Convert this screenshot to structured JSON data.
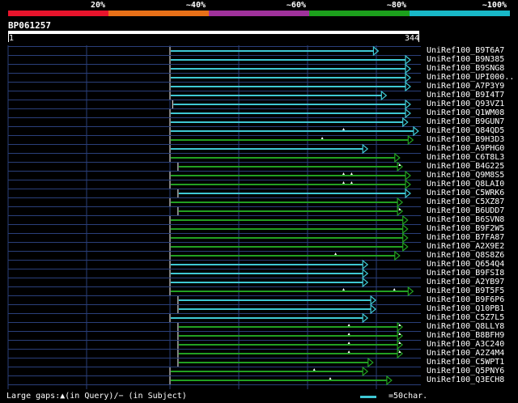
{
  "identity_scale": {
    "labels": [
      "20%",
      "~40%",
      "~60%",
      "~80%",
      "~100%"
    ],
    "colors": [
      "#e8142c",
      "#e87018",
      "#a0329c",
      "#1ca01c",
      "#18b8c8"
    ]
  },
  "query": {
    "name": "BP061257",
    "start": "1",
    "end": "344"
  },
  "colors": {
    "cyan": "#3fc8d4",
    "green": "#22a022",
    "grid": "#2a3f7a"
  },
  "hits": [
    {
      "label": "UniRef100_B9T6A7",
      "color": "cyan",
      "start": 0.0,
      "end": 0.78,
      "gaps": []
    },
    {
      "label": "UniRef100_B9N385",
      "color": "cyan",
      "start": 0.0,
      "end": 0.9,
      "gaps": []
    },
    {
      "label": "UniRef100_B9SNG8",
      "color": "cyan",
      "start": 0.0,
      "end": 0.9,
      "gaps": []
    },
    {
      "label": "UniRef100_UPI000..",
      "color": "cyan",
      "start": 0.0,
      "end": 0.9,
      "gaps": []
    },
    {
      "label": "UniRef100_A7P3Y9",
      "color": "cyan",
      "start": 0.0,
      "end": 0.9,
      "gaps": []
    },
    {
      "label": "UniRef100_B9I4T7",
      "color": "cyan",
      "start": 0.0,
      "end": 0.81,
      "gaps": []
    },
    {
      "label": "UniRef100_Q93VZ1",
      "color": "cyan",
      "start": 0.01,
      "end": 0.9,
      "gaps": []
    },
    {
      "label": "UniRef100_Q1WM08",
      "color": "cyan",
      "start": 0.0,
      "end": 0.9,
      "gaps": []
    },
    {
      "label": "UniRef100_B9GUN7",
      "color": "cyan",
      "start": 0.0,
      "end": 0.89,
      "gaps": []
    },
    {
      "label": "UniRef100_Q84QD5",
      "color": "cyan",
      "start": 0.0,
      "end": 0.93,
      "gaps": [
        0.65
      ]
    },
    {
      "label": "UniRef100_B9H3D3",
      "color": "green",
      "start": 0.0,
      "end": 0.91,
      "gaps": [
        0.57
      ]
    },
    {
      "label": "UniRef100_A9PHG0",
      "color": "cyan",
      "start": 0.0,
      "end": 0.74,
      "gaps": []
    },
    {
      "label": "UniRef100_C6T8L3",
      "color": "green",
      "start": 0.0,
      "end": 0.86,
      "gaps": []
    },
    {
      "label": "UniRef100_B4G225",
      "color": "green",
      "start": 0.03,
      "end": 0.87,
      "gaps": [
        0.86
      ]
    },
    {
      "label": "UniRef100_Q9M8S5",
      "color": "green",
      "start": 0.0,
      "end": 0.9,
      "gaps": [
        0.65,
        0.68
      ]
    },
    {
      "label": "UniRef100_Q8LAI0",
      "color": "green",
      "start": 0.0,
      "end": 0.9,
      "gaps": [
        0.65,
        0.68
      ]
    },
    {
      "label": "UniRef100_C5WRK6",
      "color": "cyan",
      "start": 0.03,
      "end": 0.9,
      "gaps": []
    },
    {
      "label": "UniRef100_C5XZ87",
      "color": "green",
      "start": 0.0,
      "end": 0.87,
      "gaps": []
    },
    {
      "label": "UniRef100_B6UDD7",
      "color": "green",
      "start": 0.03,
      "end": 0.87,
      "gaps": [
        0.86
      ]
    },
    {
      "label": "UniRef100_B6SVN8",
      "color": "green",
      "start": 0.0,
      "end": 0.89,
      "gaps": []
    },
    {
      "label": "UniRef100_B9F2W5",
      "color": "green",
      "start": 0.0,
      "end": 0.89,
      "gaps": []
    },
    {
      "label": "UniRef100_B7FA87",
      "color": "green",
      "start": 0.0,
      "end": 0.89,
      "gaps": []
    },
    {
      "label": "UniRef100_A2X9E2",
      "color": "green",
      "start": 0.0,
      "end": 0.89,
      "gaps": []
    },
    {
      "label": "UniRef100_Q8S8Z6",
      "color": "green",
      "start": 0.0,
      "end": 0.86,
      "gaps": [
        0.62
      ]
    },
    {
      "label": "UniRef100_Q654Q4",
      "color": "cyan",
      "start": 0.0,
      "end": 0.74,
      "gaps": []
    },
    {
      "label": "UniRef100_B9FSI8",
      "color": "cyan",
      "start": 0.0,
      "end": 0.74,
      "gaps": []
    },
    {
      "label": "UniRef100_A2YB97",
      "color": "cyan",
      "start": 0.0,
      "end": 0.74,
      "gaps": []
    },
    {
      "label": "UniRef100_B9T5F5",
      "color": "green",
      "start": 0.0,
      "end": 0.91,
      "gaps": [
        0.65,
        0.84
      ]
    },
    {
      "label": "UniRef100_B9F6P6",
      "color": "cyan",
      "start": 0.03,
      "end": 0.77,
      "gaps": []
    },
    {
      "label": "UniRef100_Q10PB1",
      "color": "cyan",
      "start": 0.03,
      "end": 0.77,
      "gaps": []
    },
    {
      "label": "UniRef100_C5Z7L5",
      "color": "cyan",
      "start": 0.0,
      "end": 0.74,
      "gaps": []
    },
    {
      "label": "UniRef100_Q8LLY8",
      "color": "green",
      "start": 0.03,
      "end": 0.87,
      "gaps": [
        0.67,
        0.86
      ]
    },
    {
      "label": "UniRef100_B8BFH9",
      "color": "green",
      "start": 0.03,
      "end": 0.87,
      "gaps": [
        0.67,
        0.86
      ]
    },
    {
      "label": "UniRef100_A3C240",
      "color": "green",
      "start": 0.03,
      "end": 0.87,
      "gaps": [
        0.67,
        0.86
      ]
    },
    {
      "label": "UniRef100_A2Z4M4",
      "color": "green",
      "start": 0.03,
      "end": 0.87,
      "gaps": [
        0.67,
        0.86
      ]
    },
    {
      "label": "UniRef100_C5WPT1",
      "color": "green",
      "start": 0.03,
      "end": 0.76,
      "gaps": []
    },
    {
      "label": "UniRef100_Q5PNY6",
      "color": "green",
      "start": 0.0,
      "end": 0.74,
      "gaps": [
        0.54
      ]
    },
    {
      "label": "UniRef100_Q3ECH8",
      "color": "green",
      "start": 0.0,
      "end": 0.83,
      "gaps": [
        0.6
      ]
    }
  ],
  "legend": {
    "large_gaps": "Large gaps:▲(in Query)/− (in Subject)",
    "scale_unit": "=50char."
  }
}
